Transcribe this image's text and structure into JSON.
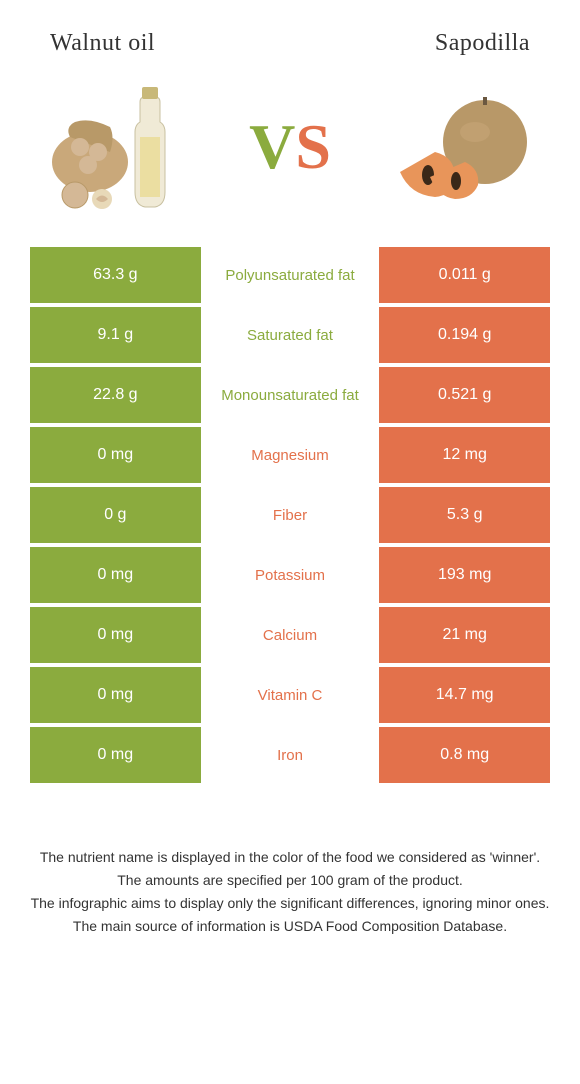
{
  "left": {
    "title": "Walnut oil",
    "color": "#8bab3e"
  },
  "right": {
    "title": "Sapodilla",
    "color": "#e3714b"
  },
  "vs": {
    "v": "V",
    "s": "S"
  },
  "rows": [
    {
      "left": "63.3 g",
      "label": "Polyunsaturated fat",
      "right": "0.011 g",
      "winner": "left"
    },
    {
      "left": "9.1 g",
      "label": "Saturated fat",
      "right": "0.194 g",
      "winner": "left"
    },
    {
      "left": "22.8 g",
      "label": "Monounsaturated fat",
      "right": "0.521 g",
      "winner": "left"
    },
    {
      "left": "0 mg",
      "label": "Magnesium",
      "right": "12 mg",
      "winner": "right"
    },
    {
      "left": "0 g",
      "label": "Fiber",
      "right": "5.3 g",
      "winner": "right"
    },
    {
      "left": "0 mg",
      "label": "Potassium",
      "right": "193 mg",
      "winner": "right"
    },
    {
      "left": "0 mg",
      "label": "Calcium",
      "right": "21 mg",
      "winner": "right"
    },
    {
      "left": "0 mg",
      "label": "Vitamin C",
      "right": "14.7 mg",
      "winner": "right"
    },
    {
      "left": "0 mg",
      "label": "Iron",
      "right": "0.8 mg",
      "winner": "right"
    }
  ],
  "footer": {
    "line1": "The nutrient name is displayed in the color of the food we considered as 'winner'.",
    "line2": "The amounts are specified per 100 gram of the product.",
    "line3": "The infographic aims to display only the significant differences, ignoring minor ones.",
    "line4": "The main source of information is USDA Food Composition Database."
  }
}
